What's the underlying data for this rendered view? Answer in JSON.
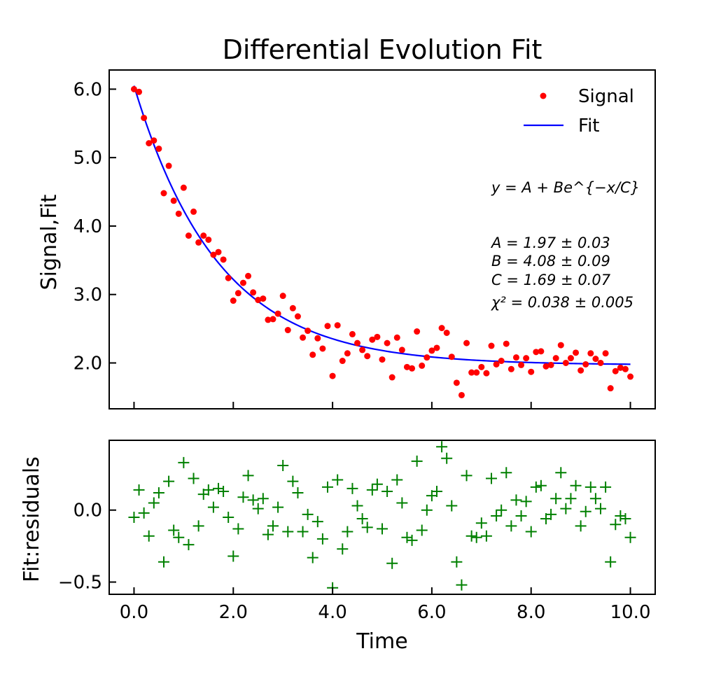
{
  "chart_data": [
    {
      "type": "scatter",
      "panel": "top",
      "title": "Differential Evolution  Fit",
      "xlabel": "",
      "ylabel": "Signal,Fit",
      "xlim": [
        -0.5,
        10.5
      ],
      "ylim": [
        1.33,
        6.28
      ],
      "xticks": [
        0,
        2,
        4,
        6,
        8,
        10
      ],
      "xtick_labels_shown": false,
      "yticks": [
        2.0,
        3.0,
        4.0,
        5.0,
        6.0
      ],
      "ytick_labels": [
        "2.0",
        "3.0",
        "4.0",
        "5.0",
        "6.0"
      ],
      "grid": false,
      "legend_position": "top-right",
      "annotations": {
        "equation": "y = A + Be^{−x/C}",
        "params": [
          "A = 1.97 ± 0.03",
          "B = 4.08 ± 0.09",
          "C = 1.69 ± 0.07",
          "χ² = 0.038 ± 0.005"
        ]
      },
      "series": [
        {
          "name": "Signal",
          "kind": "points",
          "color": "#ff0000",
          "x": [
            0.0,
            0.1,
            0.2,
            0.3,
            0.4,
            0.5,
            0.6,
            0.7,
            0.8,
            0.9,
            1.0,
            1.1,
            1.2,
            1.3,
            1.4,
            1.5,
            1.6,
            1.7,
            1.8,
            1.9,
            2.0,
            2.1,
            2.2,
            2.3,
            2.4,
            2.5,
            2.6,
            2.7,
            2.8,
            2.9,
            3.0,
            3.1,
            3.2,
            3.3,
            3.4,
            3.5,
            3.6,
            3.7,
            3.8,
            3.9,
            4.0,
            4.1,
            4.2,
            4.3,
            4.4,
            4.5,
            4.6,
            4.7,
            4.8,
            4.9,
            5.0,
            5.1,
            5.2,
            5.3,
            5.4,
            5.5,
            5.6,
            5.7,
            5.8,
            5.9,
            6.0,
            6.1,
            6.2,
            6.3,
            6.4,
            6.5,
            6.6,
            6.7,
            6.8,
            6.9,
            7.0,
            7.1,
            7.2,
            7.3,
            7.4,
            7.5,
            7.6,
            7.7,
            7.8,
            7.9,
            8.0,
            8.1,
            8.2,
            8.3,
            8.4,
            8.5,
            8.6,
            8.7,
            8.8,
            8.9,
            9.0,
            9.1,
            9.2,
            9.3,
            9.4,
            9.5,
            9.6,
            9.7,
            9.8,
            9.9,
            10.0
          ],
          "y": [
            6.0,
            5.96,
            5.58,
            5.21,
            5.25,
            5.13,
            4.48,
            4.88,
            4.37,
            4.18,
            4.56,
            3.86,
            4.21,
            3.76,
            3.86,
            3.8,
            3.58,
            3.62,
            3.51,
            3.24,
            2.91,
            3.02,
            3.17,
            3.27,
            3.03,
            2.92,
            2.94,
            2.63,
            2.64,
            2.72,
            2.98,
            2.48,
            2.8,
            2.68,
            2.37,
            2.47,
            2.12,
            2.36,
            2.21,
            2.54,
            1.81,
            2.55,
            2.03,
            2.14,
            2.42,
            2.29,
            2.19,
            2.1,
            2.34,
            2.38,
            2.05,
            2.29,
            1.79,
            2.37,
            2.19,
            1.94,
            1.92,
            2.46,
            1.96,
            2.08,
            2.18,
            2.22,
            2.51,
            2.44,
            2.09,
            1.71,
            1.53,
            2.29,
            1.86,
            1.86,
            1.94,
            1.85,
            2.25,
            1.98,
            2.03,
            2.28,
            1.91,
            2.08,
            1.97,
            2.07,
            1.87,
            2.16,
            2.17,
            1.95,
            1.97,
            2.07,
            2.26,
            2.0,
            2.07,
            2.15,
            1.89,
            1.98,
            2.14,
            2.06,
            2.0,
            2.14,
            1.63,
            1.88,
            1.93,
            1.91,
            1.8
          ]
        },
        {
          "name": "Fit",
          "kind": "line",
          "color": "#0000ff",
          "model": {
            "A": 1.97,
            "B": 4.08,
            "C": 1.69
          },
          "x_range": [
            0,
            10
          ]
        }
      ]
    },
    {
      "type": "scatter",
      "panel": "bottom",
      "title": "",
      "xlabel": "Time",
      "ylabel": "Fit:residuals",
      "xlim": [
        -0.5,
        10.5
      ],
      "ylim": [
        -0.585,
        0.485
      ],
      "xticks": [
        0,
        2,
        4,
        6,
        8,
        10
      ],
      "xtick_labels": [
        "0.0",
        "2.0",
        "4.0",
        "6.0",
        "8.0",
        "10.0"
      ],
      "yticks": [
        -0.5,
        0.0
      ],
      "ytick_labels": [
        "−0.5",
        "0.0"
      ],
      "grid": false,
      "series": [
        {
          "name": "",
          "kind": "plus",
          "color": "#008000",
          "x": [
            0.0,
            0.1,
            0.2,
            0.3,
            0.4,
            0.5,
            0.6,
            0.7,
            0.8,
            0.9,
            1.0,
            1.1,
            1.2,
            1.3,
            1.4,
            1.5,
            1.6,
            1.7,
            1.8,
            1.9,
            2.0,
            2.1,
            2.2,
            2.3,
            2.4,
            2.5,
            2.6,
            2.7,
            2.8,
            2.9,
            3.0,
            3.1,
            3.2,
            3.3,
            3.4,
            3.5,
            3.6,
            3.7,
            3.8,
            3.9,
            4.0,
            4.1,
            4.2,
            4.3,
            4.4,
            4.5,
            4.6,
            4.7,
            4.8,
            4.9,
            5.0,
            5.1,
            5.2,
            5.3,
            5.4,
            5.5,
            5.6,
            5.7,
            5.8,
            5.9,
            6.0,
            6.1,
            6.2,
            6.3,
            6.4,
            6.5,
            6.6,
            6.7,
            6.8,
            6.9,
            7.0,
            7.1,
            7.2,
            7.3,
            7.4,
            7.5,
            7.6,
            7.7,
            7.8,
            7.9,
            8.0,
            8.1,
            8.2,
            8.3,
            8.4,
            8.5,
            8.6,
            8.7,
            8.8,
            8.9,
            9.0,
            9.1,
            9.2,
            9.3,
            9.4,
            9.5,
            9.6,
            9.7,
            9.8,
            9.9,
            10.0
          ],
          "y": [
            -0.05,
            0.14,
            -0.02,
            -0.18,
            0.05,
            0.12,
            -0.36,
            0.2,
            -0.14,
            -0.19,
            0.33,
            -0.24,
            0.22,
            -0.11,
            0.11,
            0.14,
            0.02,
            0.15,
            0.13,
            -0.05,
            -0.32,
            -0.13,
            0.09,
            0.24,
            0.07,
            0.01,
            0.08,
            -0.17,
            -0.11,
            0.02,
            0.31,
            -0.15,
            0.2,
            0.12,
            -0.15,
            -0.03,
            -0.33,
            -0.08,
            -0.2,
            0.16,
            -0.54,
            0.21,
            -0.27,
            -0.15,
            0.15,
            0.03,
            -0.06,
            -0.12,
            0.14,
            0.18,
            -0.13,
            0.13,
            -0.37,
            0.21,
            0.05,
            -0.19,
            -0.21,
            0.34,
            -0.14,
            0.0,
            0.1,
            0.13,
            0.44,
            0.36,
            0.03,
            -0.36,
            -0.52,
            0.24,
            -0.18,
            -0.19,
            -0.09,
            -0.18,
            0.22,
            -0.04,
            0.0,
            0.26,
            -0.11,
            0.07,
            -0.04,
            0.06,
            -0.15,
            0.16,
            0.17,
            -0.06,
            -0.03,
            0.08,
            0.26,
            0.01,
            0.08,
            0.17,
            -0.11,
            -0.01,
            0.16,
            0.08,
            0.01,
            0.16,
            -0.36,
            -0.1,
            -0.04,
            -0.06,
            -0.19
          ]
        }
      ]
    }
  ]
}
